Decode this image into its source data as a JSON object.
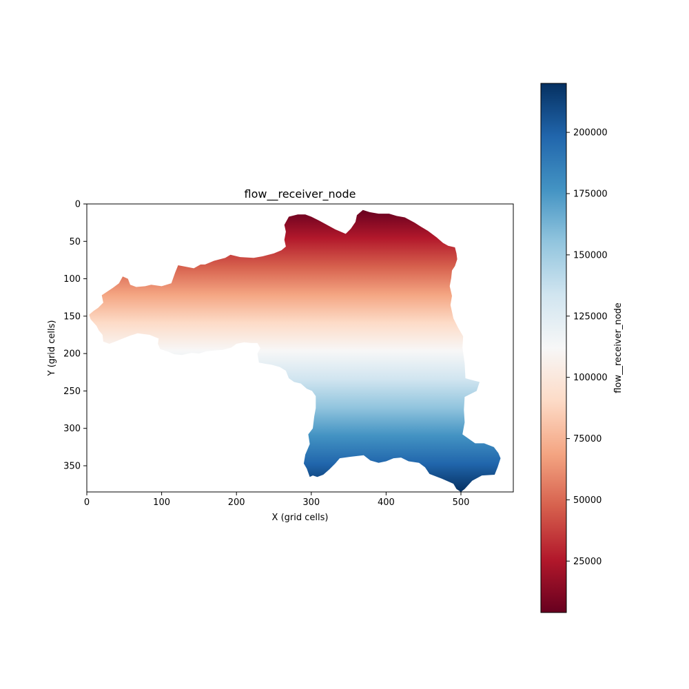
{
  "chart_data": {
    "type": "heatmap",
    "title": "flow__receiver_node",
    "xlabel": "X (grid cells)",
    "ylabel": "Y (grid cells)",
    "xlim": [
      0,
      570
    ],
    "ylim": [
      385,
      0
    ],
    "x_ticks": [
      0,
      100,
      200,
      300,
      400,
      500
    ],
    "y_ticks": [
      0,
      50,
      100,
      150,
      200,
      250,
      300,
      350
    ],
    "colormap": "RdBu",
    "colormap_stops": [
      "#67001f",
      "#b2182b",
      "#d6604d",
      "#f4a582",
      "#fddbc7",
      "#f7f7f7",
      "#d1e5f0",
      "#92c5de",
      "#4393c3",
      "#2166ac",
      "#053061"
    ],
    "colorbar": {
      "label": "flow__receiver_node",
      "range": [
        4000,
        220000
      ],
      "ticks": [
        25000,
        50000,
        75000,
        100000,
        125000,
        150000,
        175000,
        200000
      ]
    },
    "value_gradient": "value increases with row index (top red, bottom blue)",
    "watershed_boundary": [
      [
        9,
        143
      ],
      [
        15,
        139
      ],
      [
        22,
        132
      ],
      [
        20,
        122
      ],
      [
        35,
        112
      ],
      [
        43,
        106
      ],
      [
        48,
        97
      ],
      [
        55,
        100
      ],
      [
        58,
        108
      ],
      [
        66,
        111
      ],
      [
        78,
        110
      ],
      [
        86,
        108
      ],
      [
        100,
        110
      ],
      [
        113,
        106
      ],
      [
        118,
        92
      ],
      [
        122,
        82
      ],
      [
        133,
        84
      ],
      [
        143,
        86
      ],
      [
        152,
        81
      ],
      [
        158,
        81
      ],
      [
        170,
        76
      ],
      [
        185,
        72
      ],
      [
        192,
        68
      ],
      [
        205,
        71
      ],
      [
        223,
        72
      ],
      [
        235,
        70
      ],
      [
        250,
        66
      ],
      [
        260,
        62
      ],
      [
        266,
        57
      ],
      [
        264,
        48
      ],
      [
        266,
        37
      ],
      [
        264,
        28
      ],
      [
        270,
        17
      ],
      [
        282,
        14
      ],
      [
        292,
        14
      ],
      [
        300,
        17
      ],
      [
        310,
        22
      ],
      [
        321,
        28
      ],
      [
        332,
        34
      ],
      [
        346,
        40
      ],
      [
        353,
        33
      ],
      [
        359,
        24
      ],
      [
        361,
        15
      ],
      [
        369,
        8
      ],
      [
        378,
        11
      ],
      [
        390,
        13
      ],
      [
        404,
        13
      ],
      [
        414,
        16
      ],
      [
        425,
        18
      ],
      [
        438,
        25
      ],
      [
        446,
        30
      ],
      [
        456,
        36
      ],
      [
        468,
        45
      ],
      [
        476,
        52
      ],
      [
        483,
        56
      ],
      [
        492,
        58
      ],
      [
        494,
        66
      ],
      [
        495,
        74
      ],
      [
        492,
        83
      ],
      [
        488,
        89
      ],
      [
        487,
        99
      ],
      [
        485,
        110
      ],
      [
        488,
        123
      ],
      [
        486,
        135
      ],
      [
        490,
        153
      ],
      [
        496,
        165
      ],
      [
        503,
        177
      ],
      [
        502,
        192
      ],
      [
        505,
        213
      ],
      [
        506,
        233
      ],
      [
        517,
        236
      ],
      [
        525,
        238
      ],
      [
        521,
        250
      ],
      [
        505,
        258
      ],
      [
        504,
        275
      ],
      [
        505,
        292
      ],
      [
        502,
        308
      ],
      [
        509,
        313
      ],
      [
        519,
        320
      ],
      [
        531,
        320
      ],
      [
        544,
        325
      ],
      [
        550,
        333
      ],
      [
        553,
        340
      ],
      [
        549,
        352
      ],
      [
        545,
        362
      ],
      [
        528,
        363
      ],
      [
        515,
        370
      ],
      [
        505,
        381
      ],
      [
        500,
        385
      ],
      [
        494,
        381
      ],
      [
        490,
        374
      ],
      [
        474,
        367
      ],
      [
        458,
        361
      ],
      [
        452,
        352
      ],
      [
        444,
        346
      ],
      [
        430,
        344
      ],
      [
        420,
        339
      ],
      [
        410,
        340
      ],
      [
        400,
        344
      ],
      [
        390,
        346
      ],
      [
        379,
        343
      ],
      [
        370,
        336
      ],
      [
        352,
        338
      ],
      [
        338,
        340
      ],
      [
        332,
        347
      ],
      [
        324,
        355
      ],
      [
        316,
        362
      ],
      [
        308,
        365
      ],
      [
        302,
        363
      ],
      [
        298,
        365
      ],
      [
        294,
        354
      ],
      [
        290,
        347
      ],
      [
        292,
        335
      ],
      [
        298,
        321
      ],
      [
        296,
        308
      ],
      [
        302,
        300
      ],
      [
        304,
        284
      ],
      [
        306,
        273
      ],
      [
        306,
        257
      ],
      [
        301,
        250
      ],
      [
        294,
        247
      ],
      [
        286,
        240
      ],
      [
        277,
        238
      ],
      [
        270,
        233
      ],
      [
        266,
        223
      ],
      [
        258,
        218
      ],
      [
        247,
        215
      ],
      [
        240,
        214
      ],
      [
        230,
        212
      ],
      [
        228,
        200
      ],
      [
        232,
        193
      ],
      [
        228,
        186
      ],
      [
        220,
        186
      ],
      [
        210,
        185
      ],
      [
        200,
        187
      ],
      [
        193,
        192
      ],
      [
        182,
        195
      ],
      [
        170,
        196
      ],
      [
        160,
        197
      ],
      [
        150,
        200
      ],
      [
        140,
        199
      ],
      [
        127,
        202
      ],
      [
        117,
        201
      ],
      [
        110,
        198
      ],
      [
        98,
        194
      ],
      [
        95,
        187
      ],
      [
        96,
        180
      ],
      [
        84,
        175
      ],
      [
        68,
        173
      ],
      [
        58,
        176
      ],
      [
        48,
        180
      ],
      [
        38,
        184
      ],
      [
        30,
        187
      ],
      [
        22,
        184
      ],
      [
        21,
        175
      ],
      [
        16,
        169
      ],
      [
        13,
        163
      ],
      [
        5,
        154
      ],
      [
        3,
        148
      ],
      [
        9,
        143
      ]
    ]
  }
}
